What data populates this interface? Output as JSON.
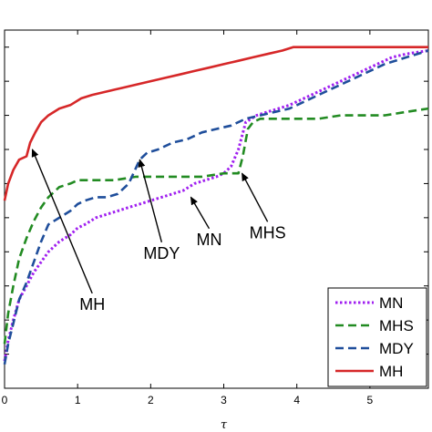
{
  "chart_data": {
    "type": "line",
    "title": "",
    "xlabel": "τ",
    "ylabel": "",
    "xlim": [
      0,
      5.8
    ],
    "ylim": [
      0,
      1.05
    ],
    "xticks": [
      "0",
      "1",
      "2",
      "3",
      "4",
      "5"
    ],
    "grid": false,
    "legend_position": "bottom-right",
    "series": [
      {
        "name": "MN",
        "color": "#A020F0",
        "style": "dotted",
        "x": [
          0,
          0.05,
          0.12,
          0.2,
          0.3,
          0.4,
          0.5,
          0.6,
          0.75,
          0.9,
          1.0,
          1.1,
          1.25,
          1.4,
          1.55,
          1.7,
          1.85,
          2.0,
          2.15,
          2.3,
          2.45,
          2.6,
          2.75,
          2.9,
          3.0,
          3.1,
          3.2,
          3.3,
          3.45,
          3.6,
          3.75,
          3.9,
          4.1,
          4.3,
          4.5,
          4.7,
          4.9,
          5.1,
          5.3,
          5.5,
          5.8
        ],
        "y": [
          0.08,
          0.14,
          0.2,
          0.26,
          0.3,
          0.34,
          0.37,
          0.4,
          0.43,
          0.45,
          0.47,
          0.48,
          0.5,
          0.51,
          0.52,
          0.53,
          0.54,
          0.55,
          0.56,
          0.57,
          0.58,
          0.6,
          0.61,
          0.62,
          0.63,
          0.65,
          0.7,
          0.78,
          0.8,
          0.81,
          0.82,
          0.83,
          0.85,
          0.87,
          0.89,
          0.91,
          0.93,
          0.95,
          0.97,
          0.98,
          0.99
        ]
      },
      {
        "name": "MHS",
        "color": "#228B22",
        "style": "dashed",
        "x": [
          0,
          0.05,
          0.12,
          0.2,
          0.3,
          0.4,
          0.5,
          0.6,
          0.75,
          0.9,
          1.0,
          1.2,
          1.5,
          1.8,
          2.1,
          2.4,
          2.7,
          3.0,
          3.2,
          3.26,
          3.33,
          3.4,
          3.5,
          3.7,
          4.0,
          4.3,
          4.6,
          4.9,
          5.2,
          5.5,
          5.8
        ],
        "y": [
          0.13,
          0.22,
          0.3,
          0.38,
          0.44,
          0.49,
          0.53,
          0.56,
          0.59,
          0.6,
          0.61,
          0.61,
          0.61,
          0.62,
          0.62,
          0.62,
          0.62,
          0.63,
          0.63,
          0.68,
          0.76,
          0.78,
          0.79,
          0.79,
          0.79,
          0.79,
          0.8,
          0.8,
          0.8,
          0.81,
          0.82
        ]
      },
      {
        "name": "MDY",
        "color": "#1F4E9B",
        "style": "dashed",
        "x": [
          0,
          0.05,
          0.12,
          0.2,
          0.3,
          0.4,
          0.5,
          0.6,
          0.75,
          0.9,
          1.0,
          1.1,
          1.25,
          1.4,
          1.55,
          1.7,
          1.85,
          1.95,
          2.1,
          2.3,
          2.5,
          2.7,
          2.9,
          3.1,
          3.3,
          3.5,
          3.7,
          3.9,
          4.1,
          4.3,
          4.6,
          4.9,
          5.2,
          5.5,
          5.8
        ],
        "y": [
          0.07,
          0.13,
          0.19,
          0.26,
          0.31,
          0.37,
          0.43,
          0.48,
          0.5,
          0.52,
          0.54,
          0.55,
          0.56,
          0.56,
          0.57,
          0.6,
          0.67,
          0.69,
          0.7,
          0.72,
          0.73,
          0.75,
          0.76,
          0.77,
          0.79,
          0.8,
          0.81,
          0.82,
          0.84,
          0.86,
          0.89,
          0.92,
          0.95,
          0.97,
          0.99
        ]
      },
      {
        "name": "MH",
        "color": "#D62728",
        "style": "solid",
        "x": [
          0,
          0.05,
          0.12,
          0.2,
          0.3,
          0.35,
          0.42,
          0.5,
          0.6,
          0.75,
          0.9,
          1.05,
          1.2,
          1.4,
          1.6,
          1.8,
          2.0,
          2.2,
          2.4,
          2.6,
          2.8,
          3.0,
          3.2,
          3.4,
          3.6,
          3.8,
          3.95,
          4.1,
          4.3,
          4.6,
          4.9,
          5.2,
          5.5,
          5.8
        ],
        "y": [
          0.55,
          0.6,
          0.64,
          0.67,
          0.68,
          0.72,
          0.75,
          0.78,
          0.8,
          0.82,
          0.83,
          0.85,
          0.86,
          0.87,
          0.88,
          0.89,
          0.9,
          0.91,
          0.92,
          0.93,
          0.94,
          0.95,
          0.96,
          0.97,
          0.98,
          0.99,
          1.0,
          1.0,
          1.0,
          1.0,
          1.0,
          1.0,
          1.0,
          1.0
        ]
      }
    ],
    "annotations": [
      {
        "text": "MH",
        "target_series": "MH",
        "arrow_x": 0.38,
        "arrow_y": 0.7,
        "label_x": 1.2,
        "label_y": 0.23
      },
      {
        "text": "MDY",
        "target_series": "MDY",
        "arrow_x": 1.85,
        "arrow_y": 0.67,
        "label_x": 2.15,
        "label_y": 0.38
      },
      {
        "text": "MN",
        "target_series": "MN",
        "arrow_x": 2.55,
        "arrow_y": 0.56,
        "label_x": 2.8,
        "label_y": 0.42
      },
      {
        "text": "MHS",
        "target_series": "MHS",
        "arrow_x": 3.25,
        "arrow_y": 0.63,
        "label_x": 3.6,
        "label_y": 0.44
      }
    ]
  }
}
